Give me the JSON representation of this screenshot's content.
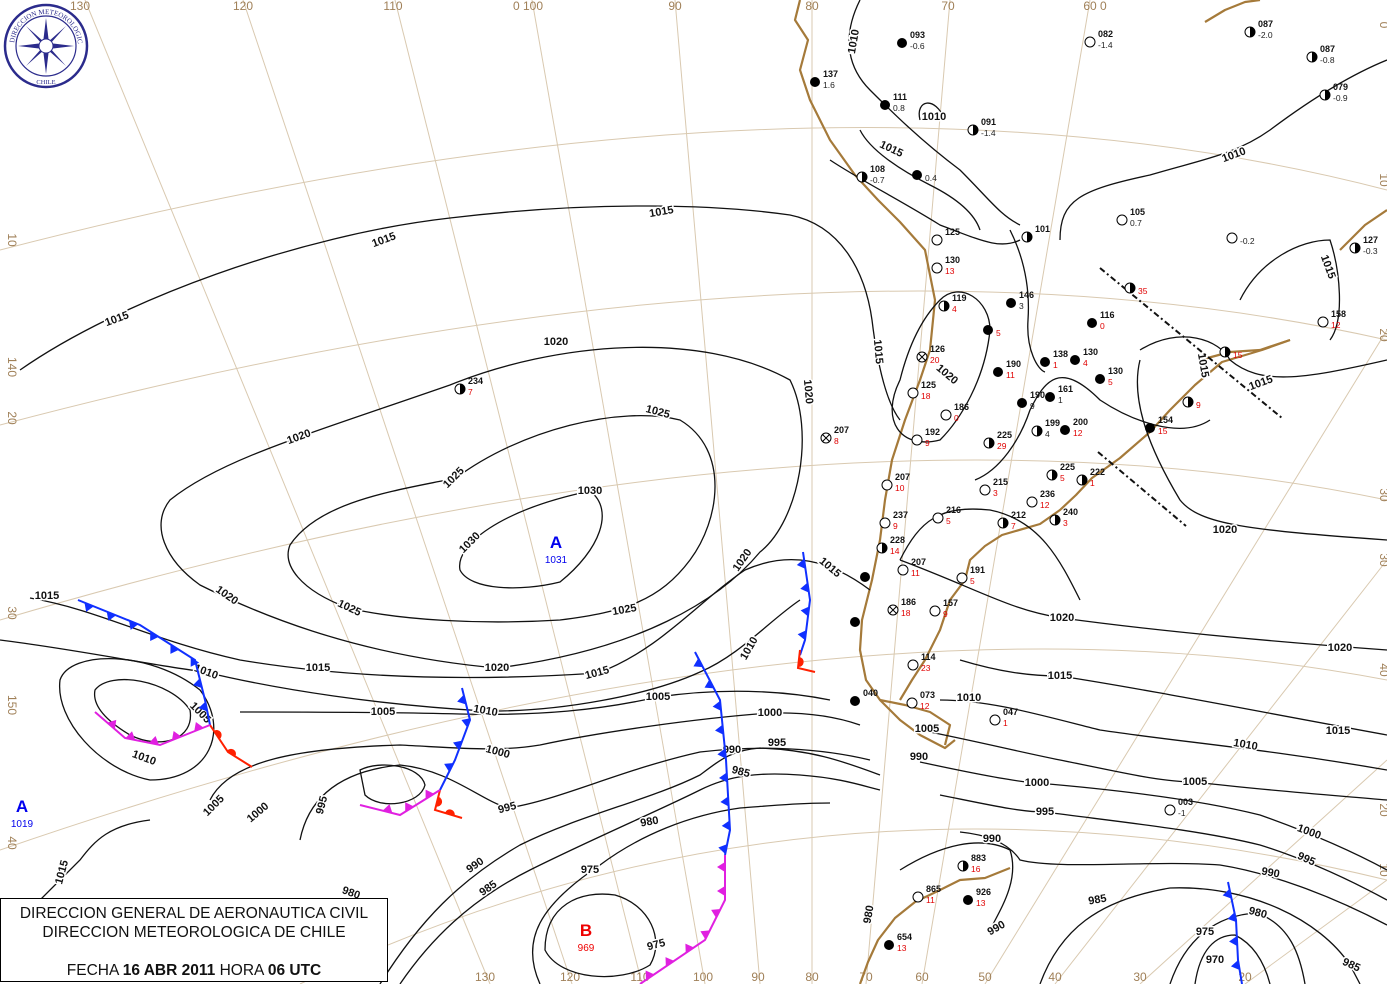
{
  "title_box": {
    "line1": "DIRECCION GENERAL DE AERONAUTICA CIVIL",
    "line2": "DIRECCION METEOROLOGICA DE CHILE",
    "fecha_label": "FECHA",
    "fecha": "16 ABR 2011",
    "hora_label": "HORA",
    "hora": "06 UTC"
  },
  "logo": {
    "text": "DIRECCION METEOROLOGICA CHILE",
    "color": "#2b2b8c"
  },
  "colors": {
    "coast": "#a57a3a",
    "graticule": "#d9c9b0",
    "high": "#0000ee",
    "low": "#ee0000",
    "cold_front": "#1030ff",
    "warm_front": "#ff2000",
    "occluded_front": "#e020e0"
  },
  "graticule_labels": {
    "top": [
      "130",
      "120",
      "110",
      "0  100",
      "90",
      "80",
      "70",
      "60  0"
    ],
    "bottom": [
      "130",
      "120",
      "110",
      "100",
      "90",
      "80",
      "70",
      "60",
      "50",
      "40",
      "30",
      "20"
    ],
    "left": [
      "10",
      "140",
      "20",
      "30",
      "150",
      "40"
    ],
    "right": [
      "0",
      "10",
      "20",
      "30",
      "30",
      "40",
      "20",
      "10"
    ]
  },
  "pressure_centers": [
    {
      "letter": "A",
      "value": "1031",
      "type": "high"
    },
    {
      "letter": "A",
      "value": "1019",
      "type": "high"
    },
    {
      "letter": "B",
      "value": "969",
      "type": "low"
    }
  ],
  "isobar_labels": [
    "1010",
    "1010",
    "1015",
    "1015",
    "1015",
    "1015",
    "1020",
    "1015",
    "1020",
    "1020",
    "1025",
    "1020",
    "1025",
    "1030",
    "1030",
    "1020",
    "1015",
    "1025",
    "1025",
    "1020",
    "1015",
    "1010",
    "1015",
    "1020",
    "1015",
    "1010",
    "1005",
    "1005",
    "1010",
    "1005",
    "1000",
    "995",
    "1000",
    "990",
    "985",
    "1010",
    "1005",
    "1000",
    "995",
    "995",
    "980",
    "975",
    "990",
    "985",
    "975",
    "1015",
    "980",
    "1010",
    "1005",
    "990",
    "1020",
    "1015",
    "1020",
    "1015",
    "1010",
    "1005",
    "1000",
    "995",
    "990",
    "1000",
    "995",
    "990",
    "985",
    "980",
    "975",
    "970",
    "985",
    "990",
    "980",
    "1010",
    "1015",
    "1015",
    "1020",
    "1015"
  ],
  "stations": [
    {
      "id": "137",
      "val": "1.6",
      "sky": "full"
    },
    {
      "id": "093",
      "val": "-0.6",
      "sky": "full"
    },
    {
      "id": "082",
      "val": "-1.4",
      "sky": "empty"
    },
    {
      "id": "087",
      "val": "-2.0",
      "sky": "half"
    },
    {
      "id": "087",
      "val": "-0.8",
      "sky": "half"
    },
    {
      "id": "079",
      "val": "-0.9",
      "sky": "half"
    },
    {
      "id": "111",
      "val": "0.8",
      "sky": "full"
    },
    {
      "id": "091",
      "val": "-1.4",
      "sky": "half"
    },
    {
      "id": "108",
      "val": "-0.7",
      "sky": "half"
    },
    {
      "id": "",
      "val": "0.4",
      "sky": "full"
    },
    {
      "id": "105",
      "val": "0.7",
      "sky": "empty"
    },
    {
      "id": "",
      "val": "-0.2",
      "sky": "empty"
    },
    {
      "id": "127",
      "val": "-0.3",
      "sky": "half"
    },
    {
      "id": "101",
      "val": "",
      "sky": "half"
    },
    {
      "id": "125",
      "val": "",
      "sky": "empty"
    },
    {
      "id": "130",
      "val": "13",
      "sky": "empty",
      "red": true
    },
    {
      "id": "",
      "val": "35",
      "sky": "half",
      "red": true
    },
    {
      "id": "146",
      "val": "3",
      "sky": "full"
    },
    {
      "id": "119",
      "val": "4",
      "sky": "half",
      "red": true
    },
    {
      "id": "116",
      "val": "0",
      "sky": "full",
      "red": true
    },
    {
      "id": "158",
      "val": "12",
      "sky": "empty",
      "red": true
    },
    {
      "id": "126",
      "val": "20",
      "sky": "cross",
      "red": true
    },
    {
      "id": "",
      "val": "15",
      "sky": "half",
      "red": true
    },
    {
      "id": "",
      "val": "5",
      "sky": "full",
      "red": true
    },
    {
      "id": "138",
      "val": "1",
      "sky": "full",
      "red": true
    },
    {
      "id": "130",
      "val": "4",
      "sky": "full",
      "red": true
    },
    {
      "id": "190",
      "val": "11",
      "sky": "full",
      "red": true
    },
    {
      "id": "130",
      "val": "5",
      "sky": "full",
      "red": true
    },
    {
      "id": "125",
      "val": "18",
      "sky": "empty",
      "red": true
    },
    {
      "id": "161",
      "val": "1",
      "sky": "full"
    },
    {
      "id": "190",
      "val": "9",
      "sky": "full"
    },
    {
      "id": "186",
      "val": "0",
      "sky": "empty",
      "red": true
    },
    {
      "id": "",
      "val": "9",
      "sky": "half",
      "red": true
    },
    {
      "id": "154",
      "val": "15",
      "sky": "full",
      "red": true
    },
    {
      "id": "192",
      "val": "9",
      "sky": "empty",
      "red": true
    },
    {
      "id": "207",
      "val": "8",
      "sky": "cross",
      "red": true
    },
    {
      "id": "225",
      "val": "29",
      "sky": "half",
      "red": true
    },
    {
      "id": "199",
      "val": "4",
      "sky": "half"
    },
    {
      "id": "200",
      "val": "12",
      "sky": "full",
      "red": true
    },
    {
      "id": "225",
      "val": "5",
      "sky": "half",
      "red": true
    },
    {
      "id": "222",
      "val": "1",
      "sky": "half",
      "red": true
    },
    {
      "id": "207",
      "val": "10",
      "sky": "empty",
      "red": true
    },
    {
      "id": "215",
      "val": "3",
      "sky": "empty",
      "red": true
    },
    {
      "id": "236",
      "val": "12",
      "sky": "empty",
      "red": true
    },
    {
      "id": "237",
      "val": "9",
      "sky": "empty",
      "red": true
    },
    {
      "id": "216",
      "val": "5",
      "sky": "empty",
      "red": true
    },
    {
      "id": "212",
      "val": "7",
      "sky": "half",
      "red": true
    },
    {
      "id": "240",
      "val": "3",
      "sky": "half",
      "red": true
    },
    {
      "id": "228",
      "val": "14",
      "sky": "half",
      "red": true
    },
    {
      "id": "207",
      "val": "11",
      "sky": "empty",
      "red": true
    },
    {
      "id": "191",
      "val": "5",
      "sky": "empty",
      "red": true
    },
    {
      "id": "186",
      "val": "18",
      "sky": "cross",
      "red": true
    },
    {
      "id": "157",
      "val": "9",
      "sky": "empty",
      "red": true
    },
    {
      "id": "114",
      "val": "23",
      "sky": "empty",
      "red": true
    },
    {
      "id": "040",
      "val": "",
      "sky": "full"
    },
    {
      "id": "073",
      "val": "12",
      "sky": "empty",
      "red": true
    },
    {
      "id": "047",
      "val": "1",
      "sky": "empty",
      "red": true
    },
    {
      "id": "003",
      "val": "-1",
      "sky": "empty"
    },
    {
      "id": "883",
      "val": "16",
      "sky": "half",
      "red": true
    },
    {
      "id": "865",
      "val": "11",
      "sky": "empty",
      "red": true
    },
    {
      "id": "926",
      "val": "13",
      "sky": "full",
      "red": true
    },
    {
      "id": "654",
      "val": "13",
      "sky": "full",
      "red": true
    },
    {
      "id": "234",
      "val": "7",
      "sky": "half",
      "red": true
    },
    {
      "id": "",
      "val": "",
      "sky": "full"
    },
    {
      "id": "",
      "val": "",
      "sky": "full"
    }
  ]
}
